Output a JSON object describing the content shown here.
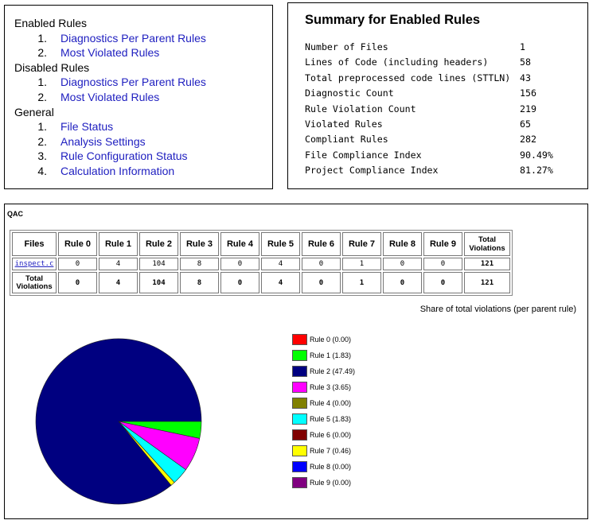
{
  "nav": {
    "enabled": {
      "heading": "Enabled Rules",
      "items": [
        {
          "num": "1.",
          "label": "Diagnostics Per Parent Rules"
        },
        {
          "num": "2.",
          "label": "Most Violated Rules"
        }
      ]
    },
    "disabled": {
      "heading": "Disabled Rules",
      "items": [
        {
          "num": "1.",
          "label": "Diagnostics Per Parent Rules"
        },
        {
          "num": "2.",
          "label": "Most Violated Rules"
        }
      ]
    },
    "general": {
      "heading": "General",
      "items": [
        {
          "num": "1.",
          "label": "File Status"
        },
        {
          "num": "2.",
          "label": "Analysis Settings"
        },
        {
          "num": "3.",
          "label": "Rule Configuration Status"
        },
        {
          "num": "4.",
          "label": "Calculation Information"
        }
      ]
    }
  },
  "summary": {
    "title": "Summary for Enabled Rules",
    "rows": [
      {
        "label": "Number of Files",
        "value": "1"
      },
      {
        "label": "Lines of Code (including headers)",
        "value": "58"
      },
      {
        "label": "Total preprocessed code lines (STTLN)",
        "value": "43"
      },
      {
        "label": "Diagnostic Count",
        "value": "156"
      },
      {
        "label": "Rule Violation Count",
        "value": "219"
      },
      {
        "label": "Violated Rules",
        "value": "65"
      },
      {
        "label": "Compliant Rules",
        "value": "282"
      },
      {
        "label": "File Compliance Index",
        "value": "90.49%"
      },
      {
        "label": "Project Compliance Index",
        "value": "81.27%"
      }
    ]
  },
  "report": {
    "heading": "QAC",
    "table": {
      "headers": {
        "files": "Files",
        "rules": [
          "Rule 0",
          "Rule 1",
          "Rule 2",
          "Rule 3",
          "Rule 4",
          "Rule 5",
          "Rule 6",
          "Rule 7",
          "Rule 8",
          "Rule 9"
        ],
        "total_line1": "Total",
        "total_line2": "Violations"
      },
      "file_row": {
        "name": "inspect.c",
        "values": [
          "0",
          "4",
          "104",
          "8",
          "0",
          "4",
          "0",
          "1",
          "0",
          "0"
        ],
        "total": "121"
      },
      "total_row": {
        "label_line1": "Total",
        "label_line2": "Violations",
        "values": [
          "0",
          "4",
          "104",
          "8",
          "0",
          "4",
          "0",
          "1",
          "0",
          "0"
        ],
        "total": "121"
      }
    }
  },
  "chart_data": {
    "type": "pie",
    "title": "Share of total violations (per parent rule)",
    "legend_placement": "right",
    "categories": [
      "Rule 0 (0.00)",
      "Rule 1 (1.83)",
      "Rule 2 (47.49)",
      "Rule 3 (3.65)",
      "Rule 4 (0.00)",
      "Rule 5 (1.83)",
      "Rule 6 (0.00)",
      "Rule 7 (0.46)",
      "Rule 8 (0.00)",
      "Rule 9 (0.00)"
    ],
    "values": [
      0.0,
      1.83,
      47.49,
      3.65,
      0.0,
      1.83,
      0.0,
      0.46,
      0.0,
      0.0
    ],
    "colors": [
      "#ff0000",
      "#00ff00",
      "#000080",
      "#ff00ff",
      "#808000",
      "#00ffff",
      "#800000",
      "#ffff00",
      "#0000ff",
      "#800080"
    ]
  }
}
